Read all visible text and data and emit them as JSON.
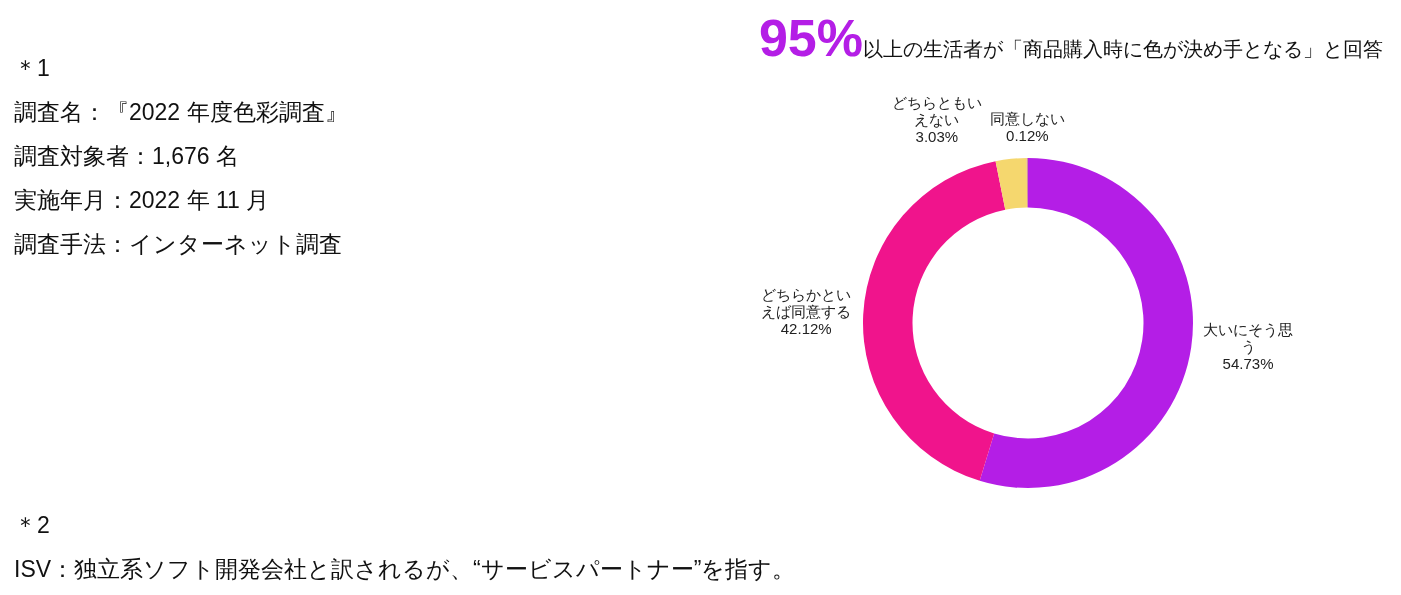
{
  "chart_data": {
    "type": "donut",
    "title": "95%以上の生活者が「商品購入時に色が決め手となる」と回答",
    "categories": [
      "大いにそう思う",
      "どちらかといえば同意する",
      "どちらともいえない",
      "同意しない"
    ],
    "values": [
      54.73,
      42.12,
      3.03,
      0.12
    ],
    "colors": [
      "#b41ee6",
      "#f0148c",
      "#f5d76e",
      "#d08aa0"
    ],
    "value_labels": [
      "54.73%",
      "42.12%",
      "3.03%",
      "0.12%"
    ],
    "legend": false,
    "annotations": [
      "＊1",
      "調査名：『2022 年度色彩調査』",
      "調査対象者：1,676 名",
      "実施年月：2022 年 11 月",
      "調査手法：インターネット調査",
      "＊2",
      "ISV：独立系ソフト開発会社と訳されるが、“サービスパートナー”を指す。"
    ]
  }
}
